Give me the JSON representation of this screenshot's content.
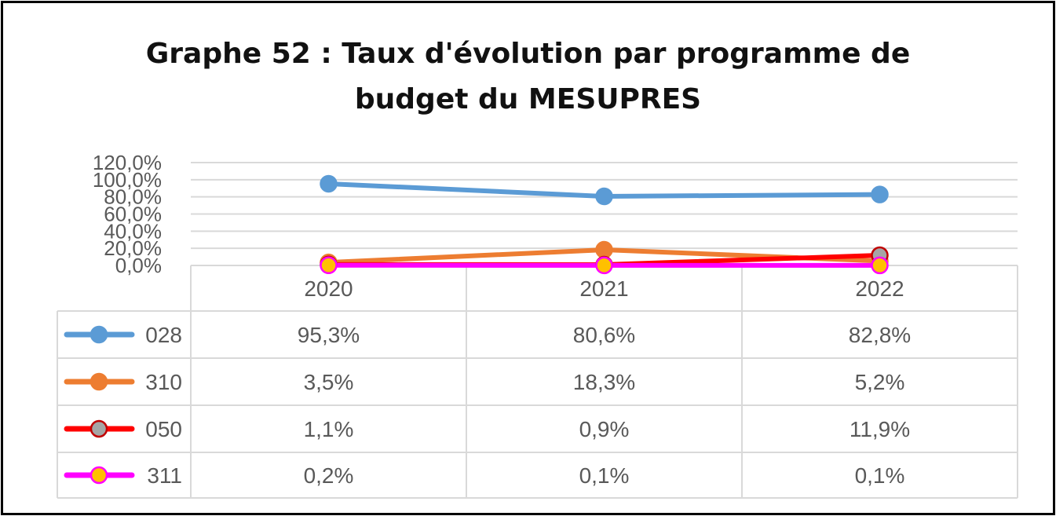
{
  "chart_data": {
    "type": "line",
    "title_lines": [
      "Graphe 52 : Taux d'évolution par programme de",
      "budget du MESUPRES"
    ],
    "categories": [
      "2020",
      "2021",
      "2022"
    ],
    "ylim": [
      0,
      120
    ],
    "y_ticks": [
      "0,0%",
      "20,0%",
      "40,0%",
      "60,0%",
      "80,0%",
      "100,0%",
      "120,0%"
    ],
    "y_tick_values": [
      0,
      20,
      40,
      60,
      80,
      100,
      120
    ],
    "grid": true,
    "legend": "data-table-below",
    "series": [
      {
        "name": "028",
        "values": [
          95.3,
          80.6,
          82.8
        ],
        "labels": [
          "95,3%",
          "80,6%",
          "82,8%"
        ],
        "line_color": "#5B9BD5",
        "marker_fill": "#5B9BD5",
        "marker_edge": "#5B9BD5"
      },
      {
        "name": "310",
        "values": [
          3.5,
          18.3,
          5.2
        ],
        "labels": [
          "3,5%",
          "18,3%",
          "5,2%"
        ],
        "line_color": "#ED7D31",
        "marker_fill": "#ED7D31",
        "marker_edge": "#ED7D31"
      },
      {
        "name": "050",
        "values": [
          1.1,
          0.9,
          11.9
        ],
        "labels": [
          "1,1%",
          "0,9%",
          "11,9%"
        ],
        "line_color": "#FF0000",
        "marker_fill": "#A5A5A5",
        "marker_edge": "#C00000"
      },
      {
        "name": "311",
        "values": [
          0.2,
          0.1,
          0.1
        ],
        "labels": [
          "0,2%",
          "0,1%",
          "0,1%"
        ],
        "line_color": "#FF00FF",
        "marker_fill": "#FFC000",
        "marker_edge": "#FF00FF"
      }
    ]
  }
}
